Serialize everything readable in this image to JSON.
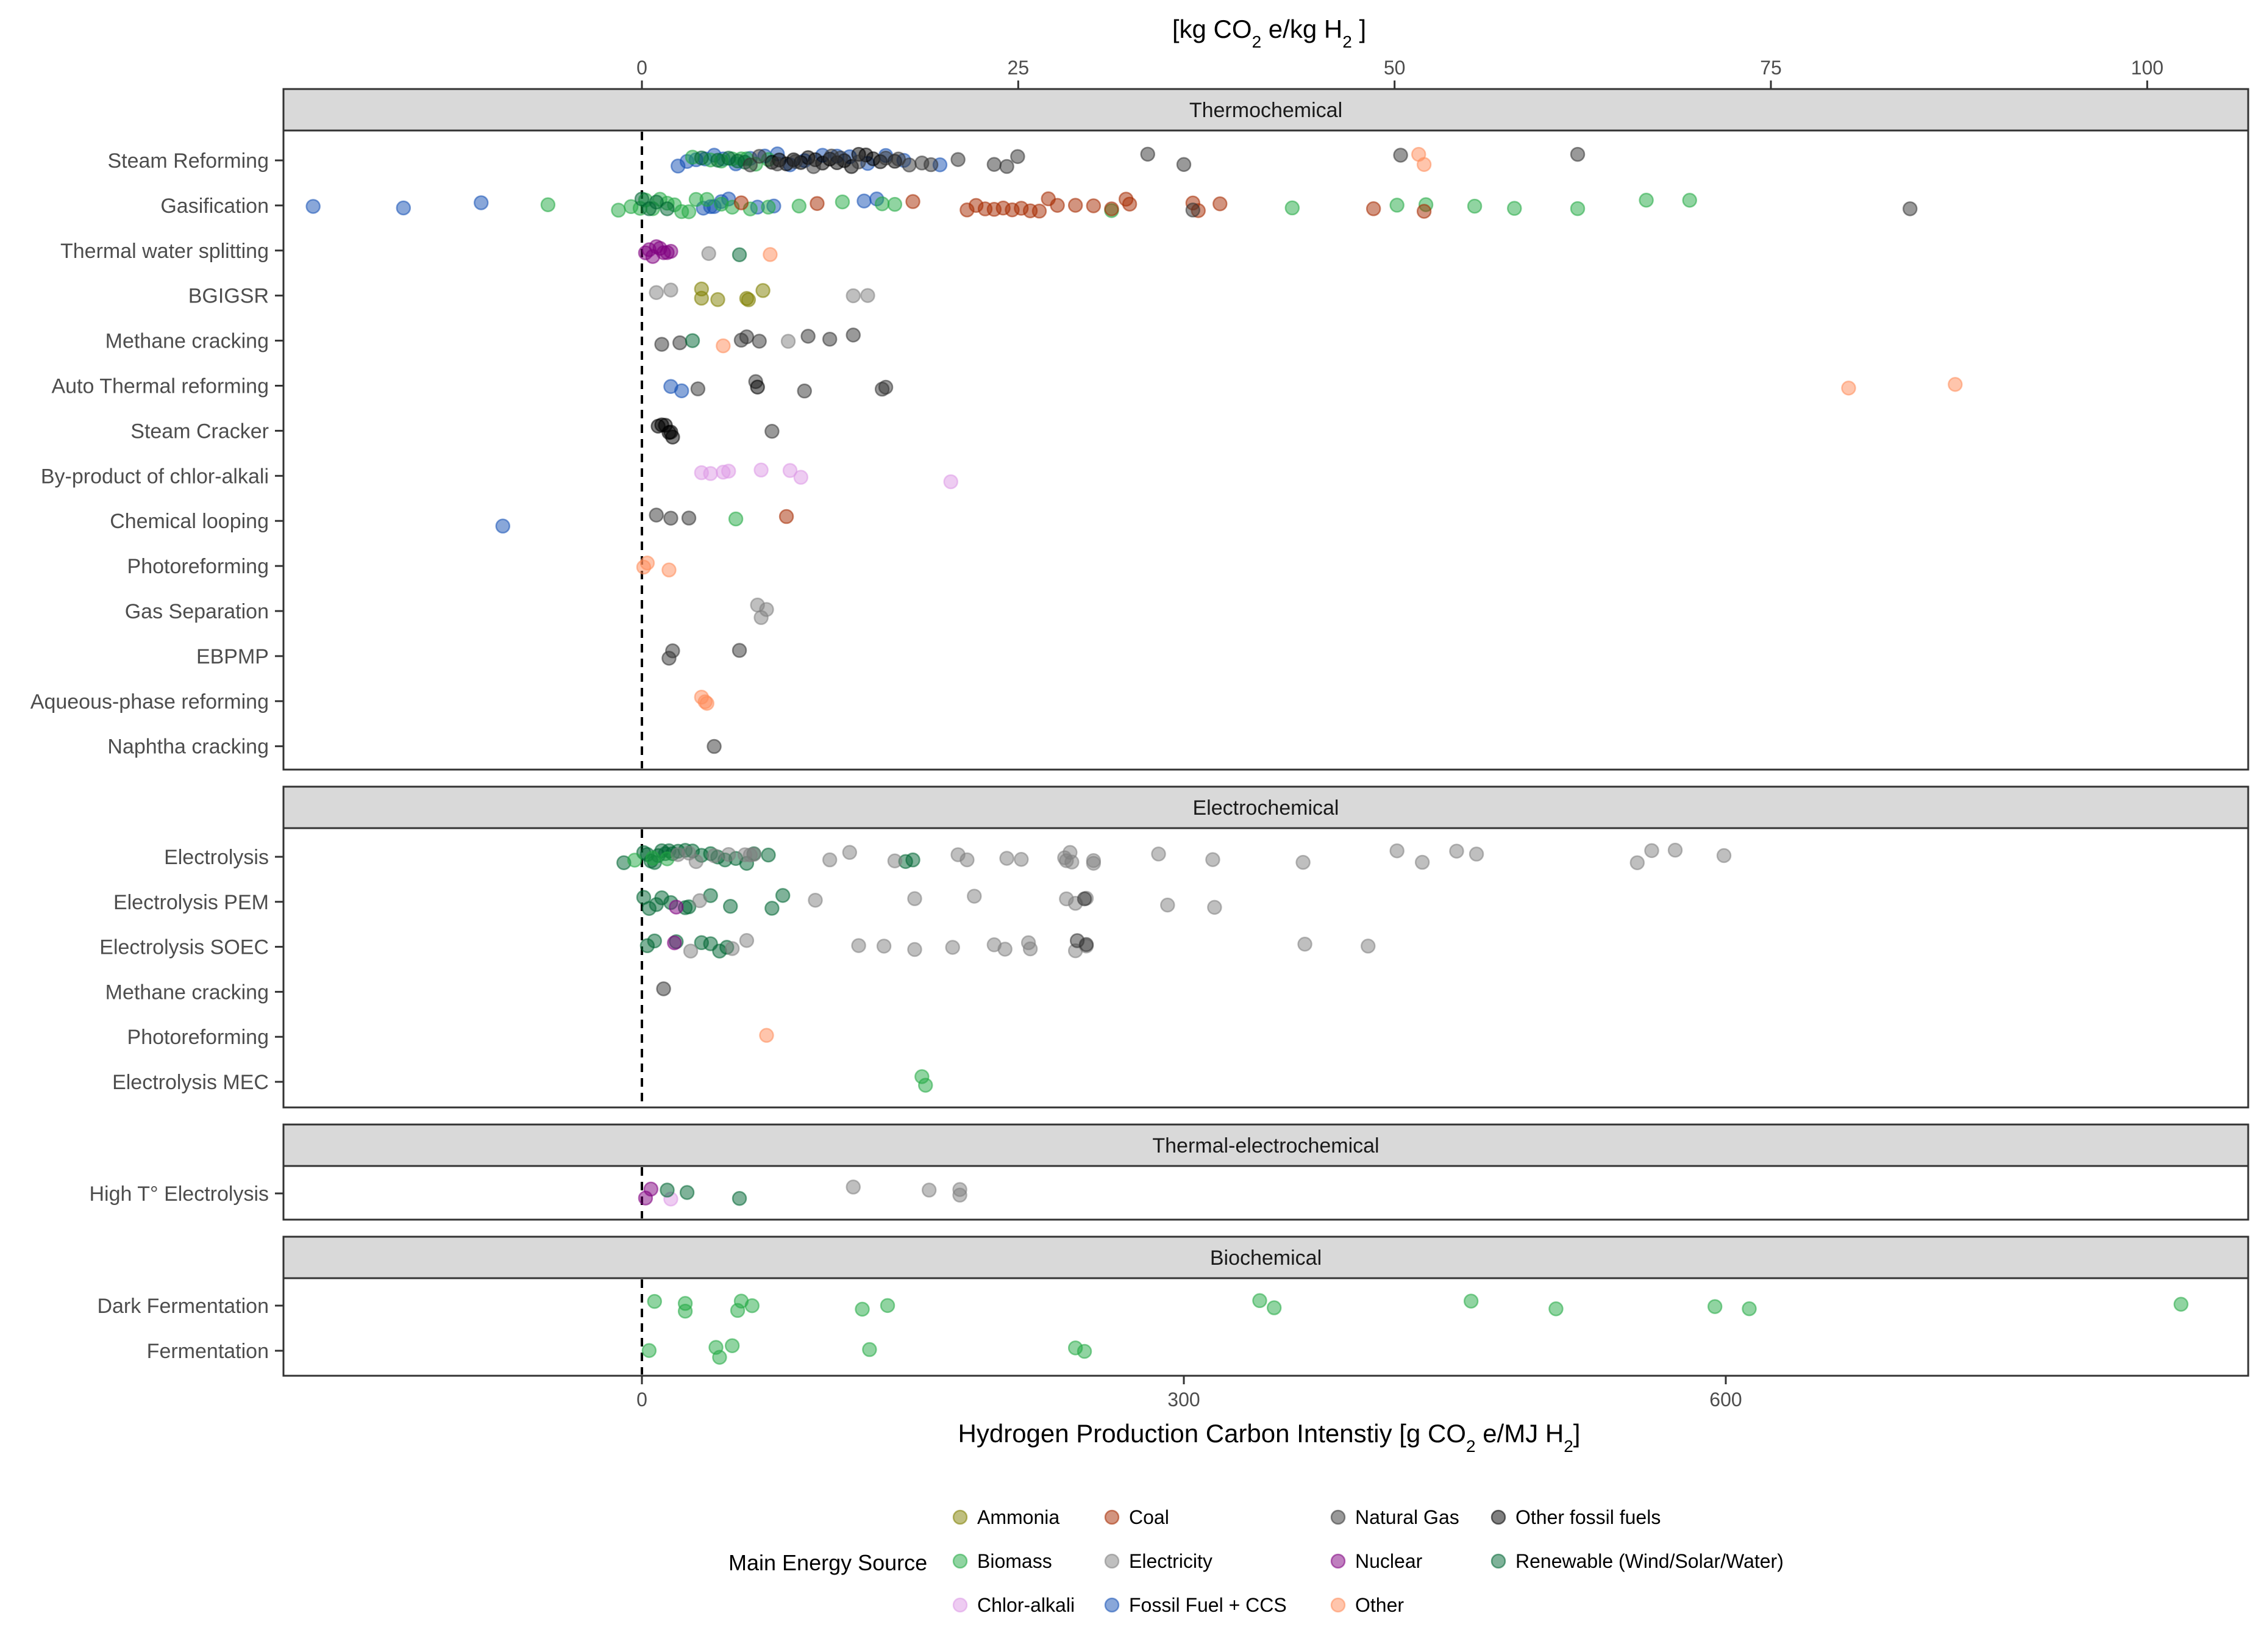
{
  "chart_data": {
    "type": "scatter",
    "xlabel": "Hydrogen Production Carbon Intenstiy [g CO",
    "xlabel_sub": "2",
    "xlabel_tail": " e/MJ H",
    "xlabel_sub2": "2",
    "xlabel_end": "]",
    "secondary_x_label": "[kg CO",
    "secondary_x_sub": "2",
    "secondary_x_mid": " e/kg H",
    "secondary_x_sub2": "2",
    "secondary_x_end": " ]",
    "xlim": [
      -195,
      890
    ],
    "x_ticks": [
      0,
      300,
      600
    ],
    "secondary_x_ticks": [
      0,
      25,
      50,
      75,
      100
    ],
    "secondary_x_factor": 8.333,
    "reference_line_x": 0,
    "grid": true,
    "legend_title": "Main Energy Source",
    "legend_position": "bottom",
    "sources": [
      {
        "key": "Ammonia",
        "color": "#7f7f00"
      },
      {
        "key": "Biomass",
        "color": "#22aa44"
      },
      {
        "key": "Chlor-alkali",
        "color": "#dd99e6"
      },
      {
        "key": "Coal",
        "color": "#a52a00"
      },
      {
        "key": "Electricity",
        "color": "#7f7f7f"
      },
      {
        "key": "Fossil Fuel + CCS",
        "color": "#1450b4"
      },
      {
        "key": "Natural Gas",
        "color": "#333333"
      },
      {
        "key": "Nuclear",
        "color": "#800080"
      },
      {
        "key": "Other",
        "color": "#ff8c5a"
      },
      {
        "key": "Other fossil fuels",
        "color": "#000000"
      },
      {
        "key": "Renewable (Wind/Solar/Water)",
        "color": "#006633"
      }
    ],
    "panels": [
      {
        "name": "Thermochemical",
        "categories": [
          "Steam Reforming",
          "Gasification",
          "Thermal water splitting",
          "BGIGSR",
          "Methane cracking",
          "Auto Thermal reforming",
          "Steam Cracker",
          "By-product of chlor-alkali",
          "Chemical looping",
          "Photoreforming",
          "Gas Separation",
          "EBPMP",
          "Aqueous-phase reforming",
          "Naphtha cracking"
        ],
        "groups": [
          {
            "category": "Steam Reforming",
            "source": "Fossil Fuel + CCS",
            "x": [
              20,
              25,
              30,
              35,
              40,
              45,
              52,
              60,
              68,
              75,
              82,
              90,
              100,
              108,
              115,
              125,
              135,
              145,
              165
            ]
          },
          {
            "category": "Steam Reforming",
            "source": "Biomass",
            "x": [
              28,
              38,
              44,
              50,
              55,
              58,
              63,
              70
            ]
          },
          {
            "category": "Steam Reforming",
            "source": "Renewable (Wind/Solar/Water)",
            "x": [
              33,
              42,
              48,
              53,
              57
            ]
          },
          {
            "category": "Steam Reforming",
            "source": "Other fossil fuels",
            "x": [
              72,
              76,
              80,
              84,
              88,
              92,
              96,
              100,
              104,
              108,
              112,
              116,
              120,
              124,
              128,
              132,
              140
            ]
          },
          {
            "category": "Steam Reforming",
            "source": "Natural Gas",
            "x": [
              60,
              65,
              75,
              85,
              95,
              105,
              110,
              120,
              135,
              142,
              148,
              155,
              160,
              175,
              195,
              202,
              208,
              280,
              300,
              420,
              518
            ]
          },
          {
            "category": "Steam Reforming",
            "source": "Other",
            "x": [
              430,
              433
            ]
          },
          {
            "category": "Gasification",
            "source": "Fossil Fuel + CCS",
            "x": [
              -182,
              -132,
              -89,
              34,
              38,
              40,
              44,
              48,
              64,
              73,
              123,
              130
            ]
          },
          {
            "category": "Gasification",
            "source": "Biomass",
            "x": [
              -52,
              -13,
              -6,
              -1,
              2,
              6,
              10,
              14,
              18,
              22,
              26,
              30,
              36,
              44,
              50,
              60,
              70,
              87,
              111,
              133,
              140,
              260,
              360,
              418,
              434,
              461,
              483,
              518,
              556,
              580
            ]
          },
          {
            "category": "Gasification",
            "source": "Renewable (Wind/Solar/Water)",
            "x": [
              0,
              4,
              8,
              14
            ]
          },
          {
            "category": "Gasification",
            "source": "Coal",
            "x": [
              55,
              97,
              150,
              180,
              185,
              190,
              195,
              200,
              205,
              210,
              215,
              220,
              225,
              230,
              240,
              250,
              260,
              268,
              270,
              305,
              308,
              320,
              405,
              433
            ]
          },
          {
            "category": "Gasification",
            "source": "Natural Gas",
            "x": [
              305,
              702
            ]
          },
          {
            "category": "Thermal water splitting",
            "source": "Nuclear",
            "x": [
              2,
              4,
              6,
              8,
              10,
              12,
              14,
              16
            ]
          },
          {
            "category": "Thermal water splitting",
            "source": "Electricity",
            "x": [
              37
            ]
          },
          {
            "category": "Thermal water splitting",
            "source": "Renewable (Wind/Solar/Water)",
            "x": [
              54
            ]
          },
          {
            "category": "Thermal water splitting",
            "source": "Other",
            "x": [
              71
            ]
          },
          {
            "category": "BGIGSR",
            "source": "Electricity",
            "x": [
              8,
              16,
              117,
              125
            ]
          },
          {
            "category": "BGIGSR",
            "source": "Ammonia",
            "x": [
              33,
              33,
              42,
              58,
              59,
              67
            ]
          },
          {
            "category": "Methane cracking",
            "source": "Natural Gas",
            "x": [
              11,
              21,
              55,
              58,
              65,
              92,
              104,
              117
            ]
          },
          {
            "category": "Methane cracking",
            "source": "Renewable (Wind/Solar/Water)",
            "x": [
              28
            ]
          },
          {
            "category": "Methane cracking",
            "source": "Other",
            "x": [
              45
            ]
          },
          {
            "category": "Methane cracking",
            "source": "Electricity",
            "x": [
              81
            ]
          },
          {
            "category": "Auto Thermal reforming",
            "source": "Fossil Fuel + CCS",
            "x": [
              16,
              22
            ]
          },
          {
            "category": "Auto Thermal reforming",
            "source": "Natural Gas",
            "x": [
              31,
              63,
              90,
              133,
              135
            ]
          },
          {
            "category": "Auto Thermal reforming",
            "source": "Other fossil fuels",
            "x": [
              64
            ]
          },
          {
            "category": "Auto Thermal reforming",
            "source": "Other",
            "x": [
              668,
              727
            ]
          },
          {
            "category": "Steam Cracker",
            "source": "Other fossil fuels",
            "x": [
              9,
              11,
              13,
              15,
              16,
              17
            ]
          },
          {
            "category": "Steam Cracker",
            "source": "Natural Gas",
            "x": [
              72
            ]
          },
          {
            "category": "By-product of chlor-alkali",
            "source": "Chlor-alkali",
            "x": [
              33,
              38,
              45,
              48,
              66,
              82,
              88,
              171
            ]
          },
          {
            "category": "Chemical looping",
            "source": "Fossil Fuel + CCS",
            "x": [
              -77
            ]
          },
          {
            "category": "Chemical looping",
            "source": "Natural Gas",
            "x": [
              8,
              16,
              26
            ]
          },
          {
            "category": "Chemical looping",
            "source": "Biomass",
            "x": [
              52
            ]
          },
          {
            "category": "Chemical looping",
            "source": "Coal",
            "x": [
              80
            ]
          },
          {
            "category": "Photoreforming",
            "source": "Other",
            "x": [
              1,
              3,
              15
            ]
          },
          {
            "category": "Gas Separation",
            "source": "Electricity",
            "x": [
              64,
              66,
              69
            ]
          },
          {
            "category": "EBPMP",
            "source": "Natural Gas",
            "x": [
              15,
              17,
              54
            ]
          },
          {
            "category": "Aqueous-phase reforming",
            "source": "Other",
            "x": [
              33,
              35,
              36
            ]
          },
          {
            "category": "Naphtha cracking",
            "source": "Natural Gas",
            "x": [
              40
            ]
          }
        ]
      },
      {
        "name": "Electrochemical",
        "categories": [
          "Electrolysis",
          "Electrolysis PEM",
          "Electrolysis SOEC",
          "Methane cracking",
          "Photoreforming",
          "Electrolysis MEC"
        ],
        "groups": [
          {
            "category": "Electrolysis",
            "source": "Renewable (Wind/Solar/Water)",
            "x": [
              -10,
              1,
              3,
              5,
              7,
              9,
              11,
              13,
              15,
              17,
              20,
              24,
              28,
              33,
              38,
              42,
              46,
              52,
              58,
              62,
              70,
              146,
              150
            ]
          },
          {
            "category": "Electrolysis",
            "source": "Biomass",
            "x": [
              -4,
              6,
              14
            ]
          },
          {
            "category": "Electrolysis",
            "source": "Electricity",
            "x": [
              20,
              26,
              30,
              40,
              48,
              57,
              60,
              62,
              104,
              115,
              140,
              175,
              180,
              202,
              210,
              234,
              235,
              237,
              238,
              250,
              250,
              286,
              316,
              366,
              418,
              432,
              451,
              462,
              551,
              559,
              572,
              599
            ]
          },
          {
            "category": "Electrolysis PEM",
            "source": "Renewable (Wind/Solar/Water)",
            "x": [
              1,
              4,
              8,
              11,
              16,
              24,
              26,
              38,
              49,
              72,
              78
            ]
          },
          {
            "category": "Electrolysis PEM",
            "source": "Electricity",
            "x": [
              32,
              96,
              151,
              184,
              235,
              240,
              246,
              291,
              317
            ]
          },
          {
            "category": "Electrolysis PEM",
            "source": "Nuclear",
            "x": [
              19
            ]
          },
          {
            "category": "Electrolysis PEM",
            "source": "Natural Gas",
            "x": [
              245
            ]
          },
          {
            "category": "Electrolysis SOEC",
            "source": "Renewable (Wind/Solar/Water)",
            "x": [
              3,
              7,
              19,
              33,
              38,
              43,
              47
            ]
          },
          {
            "category": "Electrolysis SOEC",
            "source": "Nuclear",
            "x": [
              18
            ]
          },
          {
            "category": "Electrolysis SOEC",
            "source": "Electricity",
            "x": [
              27,
              50,
              58,
              120,
              134,
              151,
              172,
              195,
              201,
              214,
              215,
              240,
              246,
              367,
              402
            ]
          },
          {
            "category": "Electrolysis SOEC",
            "source": "Natural Gas",
            "x": [
              241,
              246
            ]
          },
          {
            "category": "Methane cracking",
            "source": "Natural Gas",
            "x": [
              12
            ]
          },
          {
            "category": "Photoreforming",
            "source": "Other",
            "x": [
              69
            ]
          },
          {
            "category": "Electrolysis MEC",
            "source": "Biomass",
            "x": [
              155,
              157
            ]
          }
        ]
      },
      {
        "name": "Thermal-electrochemical",
        "categories": [
          "High T° Electrolysis"
        ],
        "groups": [
          {
            "category": "High T° Electrolysis",
            "source": "Nuclear",
            "x": [
              2,
              5
            ]
          },
          {
            "category": "High T° Electrolysis",
            "source": "Chlor-alkali",
            "x": [
              16
            ]
          },
          {
            "category": "High T° Electrolysis",
            "source": "Renewable (Wind/Solar/Water)",
            "x": [
              14,
              25,
              54
            ]
          },
          {
            "category": "High T° Electrolysis",
            "source": "Electricity",
            "x": [
              117,
              159,
              176,
              176
            ]
          }
        ]
      },
      {
        "name": "Biochemical",
        "categories": [
          "Dark Fermentation",
          "Fermentation"
        ],
        "groups": [
          {
            "category": "Dark Fermentation",
            "source": "Biomass",
            "x": [
              7,
              24,
              24,
              53,
              55,
              61,
              122,
              136,
              342,
              350,
              459,
              506,
              594,
              613,
              852
            ]
          },
          {
            "category": "Fermentation",
            "source": "Biomass",
            "x": [
              4,
              41,
              43,
              50,
              126,
              240,
              245
            ]
          }
        ]
      }
    ]
  }
}
